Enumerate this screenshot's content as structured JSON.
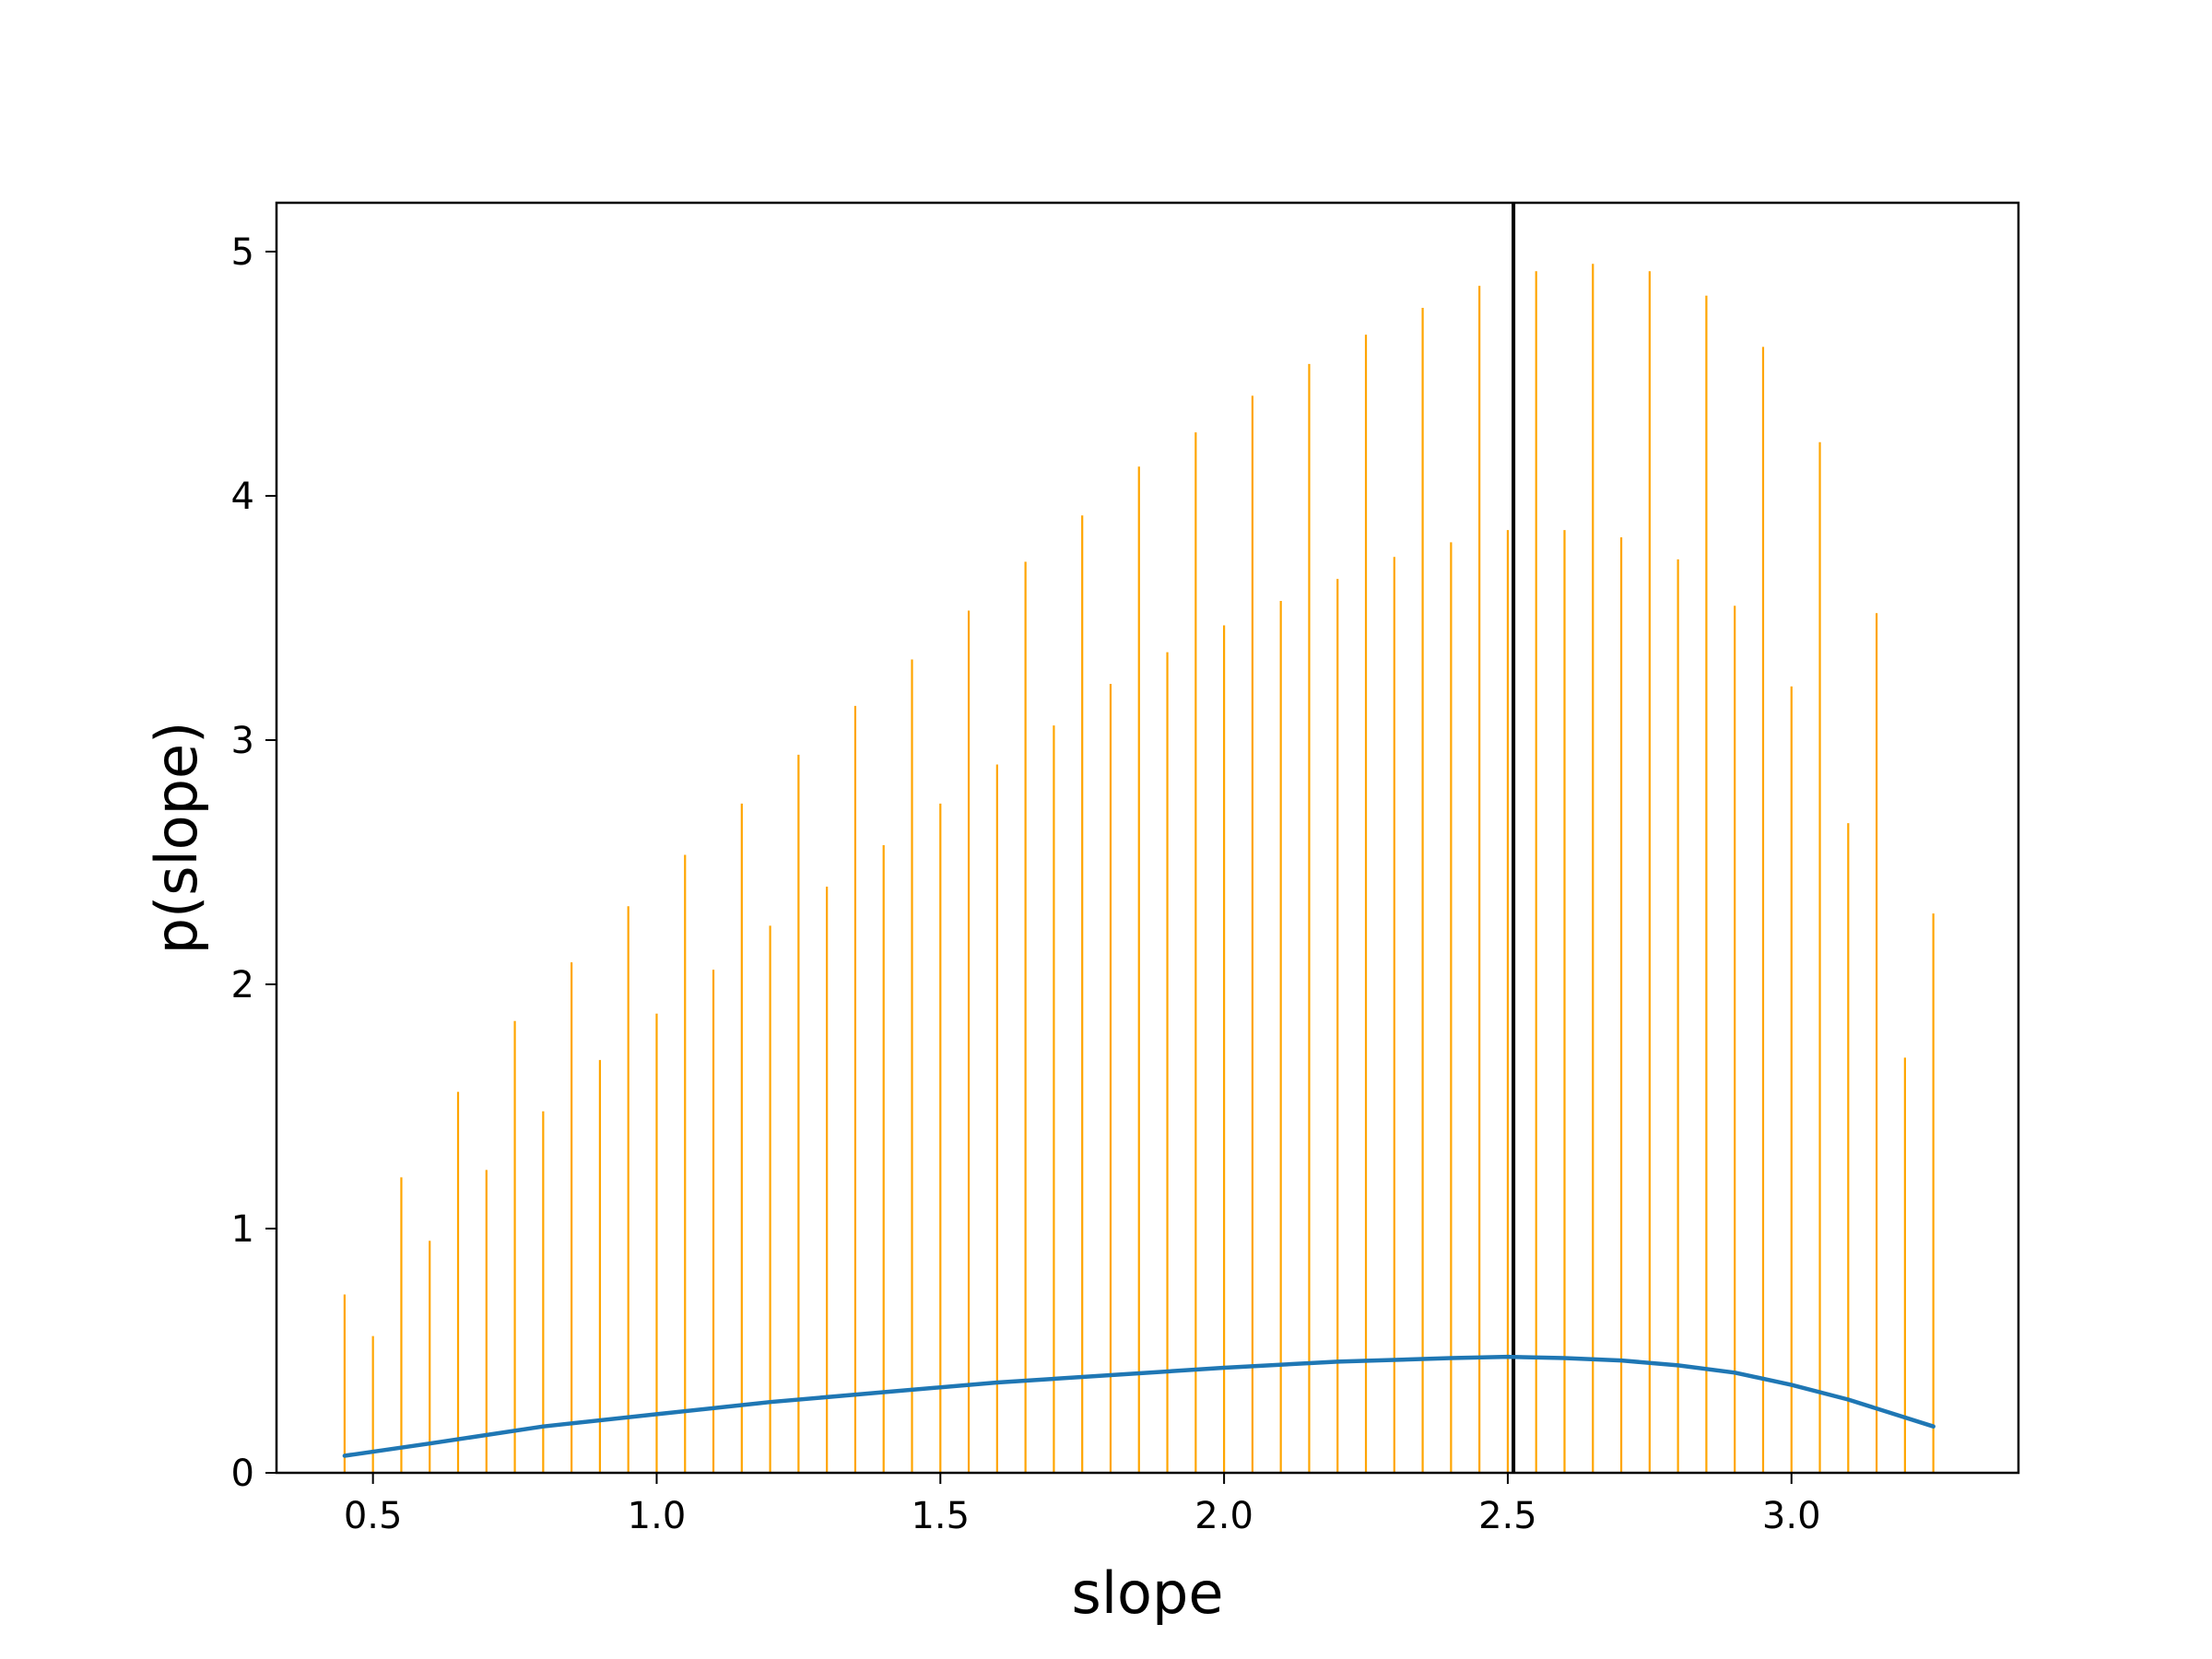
{
  "chart_data": {
    "type": "line",
    "title": "",
    "xlabel": "slope",
    "ylabel": "p(slope)",
    "xlim": [
      0.33,
      3.4
    ],
    "ylim": [
      0,
      5.2
    ],
    "xticks": [
      0.5,
      1.0,
      1.5,
      2.0,
      2.5,
      3.0
    ],
    "xtick_labels": [
      "0.5",
      "1.0",
      "1.5",
      "2.0",
      "2.5",
      "3.0"
    ],
    "yticks": [
      0,
      1,
      2,
      3,
      4,
      5
    ],
    "ytick_labels": [
      "0",
      "1",
      "2",
      "3",
      "4",
      "5"
    ],
    "grid": false,
    "colors": {
      "curve": "#1f77b4",
      "lines": "#ffa500",
      "marker": "#000000"
    },
    "curve": {
      "x": [
        0.45,
        0.6,
        0.8,
        1.0,
        1.2,
        1.4,
        1.6,
        1.8,
        2.0,
        2.2,
        2.4,
        2.5,
        2.6,
        2.7,
        2.8,
        2.9,
        3.0,
        3.1,
        3.25
      ],
      "y": [
        0.07,
        0.12,
        0.19,
        0.24,
        0.29,
        0.33,
        0.37,
        0.4,
        0.43,
        0.455,
        0.47,
        0.475,
        0.47,
        0.46,
        0.44,
        0.41,
        0.36,
        0.3,
        0.19
      ]
    },
    "vertical_lines": {
      "x": [
        0.45,
        0.5,
        0.55,
        0.6,
        0.65,
        0.7,
        0.75,
        0.8,
        0.85,
        0.9,
        0.95,
        1.0,
        1.05,
        1.1,
        1.15,
        1.2,
        1.25,
        1.3,
        1.35,
        1.4,
        1.45,
        1.5,
        1.55,
        1.6,
        1.65,
        1.7,
        1.75,
        1.8,
        1.85,
        1.9,
        1.95,
        2.0,
        2.05,
        2.1,
        2.15,
        2.2,
        2.25,
        2.3,
        2.35,
        2.4,
        2.45,
        2.5,
        2.55,
        2.6,
        2.65,
        2.7,
        2.75,
        2.8,
        2.85,
        2.9,
        2.95,
        3.0,
        3.05,
        3.1,
        3.15,
        3.2,
        3.25
      ],
      "y": [
        0.73,
        0.56,
        1.21,
        0.95,
        1.56,
        1.24,
        1.85,
        1.48,
        2.09,
        1.69,
        2.32,
        1.88,
        2.53,
        2.06,
        2.74,
        2.24,
        2.94,
        2.4,
        3.14,
        2.57,
        3.33,
        2.74,
        3.53,
        2.9,
        3.73,
        3.06,
        3.92,
        3.23,
        4.12,
        3.36,
        4.26,
        3.47,
        4.41,
        3.57,
        4.54,
        3.66,
        4.66,
        3.75,
        4.77,
        3.81,
        4.86,
        3.86,
        4.92,
        3.86,
        4.95,
        3.83,
        4.92,
        3.74,
        4.82,
        3.55,
        4.61,
        3.22,
        4.22,
        2.66,
        3.52,
        1.7,
        2.29
      ]
    },
    "marker_line": {
      "x": 2.51
    }
  }
}
